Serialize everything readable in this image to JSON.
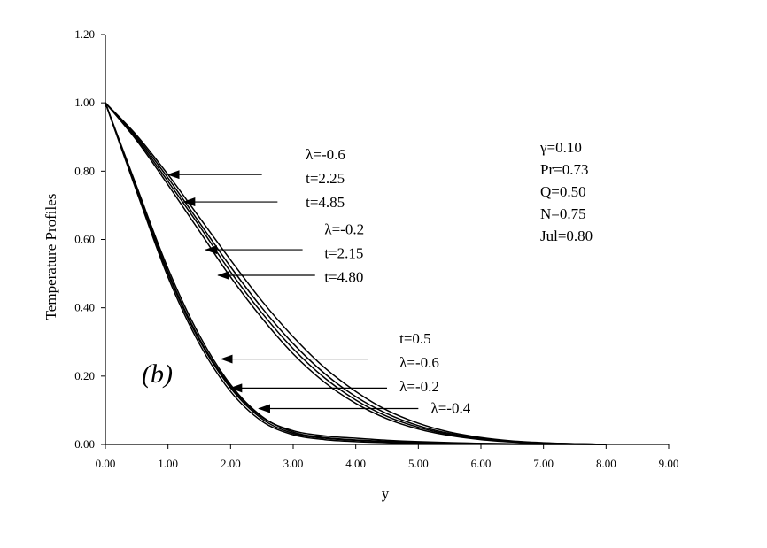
{
  "chart_data": {
    "type": "line",
    "xlabel": "y",
    "ylabel": "Temperature Profiles",
    "xlim": [
      0,
      9
    ],
    "ylim": [
      0,
      1.2
    ],
    "x_ticks": [
      "0.00",
      "1.00",
      "2.00",
      "3.00",
      "4.00",
      "5.00",
      "6.00",
      "7.00",
      "8.00",
      "9.00"
    ],
    "y_ticks": [
      "0.00",
      "0.20",
      "0.40",
      "0.60",
      "0.80",
      "1.00",
      "1.20"
    ],
    "panel_label": "(b)",
    "parameters": [
      "γ=0.10",
      "Pr=0.73",
      "Q=0.50",
      "N=0.75",
      "Jul=0.80"
    ],
    "series": [
      {
        "x": [
          0,
          0.5,
          1,
          1.5,
          2,
          2.5,
          3,
          3.5,
          4,
          4.5,
          5,
          5.5,
          6,
          6.5,
          7,
          7.5,
          8
        ],
        "values": [
          1.0,
          0.905,
          0.79,
          0.665,
          0.54,
          0.42,
          0.315,
          0.225,
          0.155,
          0.1,
          0.062,
          0.036,
          0.02,
          0.01,
          0.005,
          0.002,
          0.0
        ]
      },
      {
        "x": [
          0,
          0.5,
          1,
          1.5,
          2,
          2.5,
          3,
          3.5,
          4,
          4.5,
          5,
          5.5,
          6,
          6.5,
          7,
          7.5,
          8
        ],
        "values": [
          1.0,
          0.9,
          0.78,
          0.65,
          0.52,
          0.4,
          0.295,
          0.208,
          0.14,
          0.09,
          0.055,
          0.032,
          0.018,
          0.009,
          0.004,
          0.002,
          0.0
        ]
      },
      {
        "x": [
          0,
          0.5,
          1,
          1.5,
          2,
          2.5,
          3,
          3.5,
          4,
          4.5,
          5,
          5.5,
          6,
          6.5,
          7,
          7.5,
          8
        ],
        "values": [
          1.0,
          0.895,
          0.77,
          0.64,
          0.505,
          0.385,
          0.28,
          0.195,
          0.13,
          0.082,
          0.05,
          0.029,
          0.016,
          0.008,
          0.004,
          0.002,
          0.0
        ]
      },
      {
        "x": [
          0,
          0.5,
          1,
          1.5,
          2,
          2.5,
          3,
          3.5,
          4,
          4.5,
          5,
          5.5,
          6,
          6.5,
          7,
          7.5,
          8
        ],
        "values": [
          1.0,
          0.89,
          0.76,
          0.625,
          0.49,
          0.37,
          0.265,
          0.182,
          0.12,
          0.075,
          0.045,
          0.026,
          0.014,
          0.007,
          0.003,
          0.001,
          0.0
        ]
      },
      {
        "x": [
          0,
          0.5,
          1,
          1.5,
          2,
          2.5,
          3,
          3.5,
          4,
          4.5,
          5,
          6,
          7,
          8
        ],
        "values": [
          1.0,
          0.745,
          0.5,
          0.305,
          0.165,
          0.075,
          0.032,
          0.018,
          0.012,
          0.008,
          0.005,
          0.002,
          0.001,
          0.0
        ]
      },
      {
        "x": [
          0,
          0.5,
          1,
          1.5,
          2,
          2.5,
          3,
          3.5,
          4,
          4.5,
          5,
          6,
          7,
          8
        ],
        "values": [
          1.0,
          0.755,
          0.515,
          0.32,
          0.175,
          0.082,
          0.036,
          0.02,
          0.013,
          0.009,
          0.006,
          0.003,
          0.001,
          0.0
        ]
      },
      {
        "x": [
          0,
          0.5,
          1,
          1.5,
          2,
          2.5,
          3,
          3.5,
          4,
          4.5,
          5,
          6,
          7,
          8
        ],
        "values": [
          1.0,
          0.74,
          0.49,
          0.295,
          0.155,
          0.068,
          0.028,
          0.014,
          0.008,
          0.005,
          0.003,
          0.001,
          0.0,
          0.0
        ]
      },
      {
        "x": [
          0,
          0.5,
          1,
          1.5,
          2,
          2.5,
          3,
          3.5,
          4,
          4.5,
          5,
          6,
          7,
          8
        ],
        "values": [
          1.0,
          0.75,
          0.505,
          0.31,
          0.17,
          0.08,
          0.04,
          0.025,
          0.018,
          0.012,
          0.008,
          0.003,
          0.001,
          0.0
        ]
      }
    ],
    "annotations": [
      {
        "text": "λ=-0.6",
        "tx": 3.2,
        "ty": 0.835
      },
      {
        "text": "t=2.25",
        "tx": 3.2,
        "ty": 0.765
      },
      {
        "text": "t=4.85",
        "tx": 3.2,
        "ty": 0.695
      },
      {
        "text": "λ=-0.2",
        "tx": 3.5,
        "ty": 0.615
      },
      {
        "text": "t=2.15",
        "tx": 3.5,
        "ty": 0.545
      },
      {
        "text": "t=4.80",
        "tx": 3.5,
        "ty": 0.475
      },
      {
        "text": "t=0.5",
        "tx": 4.7,
        "ty": 0.295
      },
      {
        "text": "λ=-0.6",
        "tx": 4.7,
        "ty": 0.225
      },
      {
        "text": "λ=-0.2",
        "tx": 4.7,
        "ty": 0.155
      },
      {
        "text": "λ=-0.4",
        "tx": 5.2,
        "ty": 0.092
      }
    ],
    "arrows": [
      {
        "x1": 2.5,
        "y1": 0.79,
        "x2": 1.0,
        "y2": 0.79
      },
      {
        "x1": 2.75,
        "y1": 0.71,
        "x2": 1.25,
        "y2": 0.71
      },
      {
        "x1": 3.15,
        "y1": 0.57,
        "x2": 1.6,
        "y2": 0.57
      },
      {
        "x1": 3.35,
        "y1": 0.495,
        "x2": 1.8,
        "y2": 0.495
      },
      {
        "x1": 4.2,
        "y1": 0.25,
        "x2": 1.85,
        "y2": 0.25
      },
      {
        "x1": 4.5,
        "y1": 0.165,
        "x2": 2.0,
        "y2": 0.165
      },
      {
        "x1": 5.0,
        "y1": 0.105,
        "x2": 2.45,
        "y2": 0.105
      }
    ]
  }
}
